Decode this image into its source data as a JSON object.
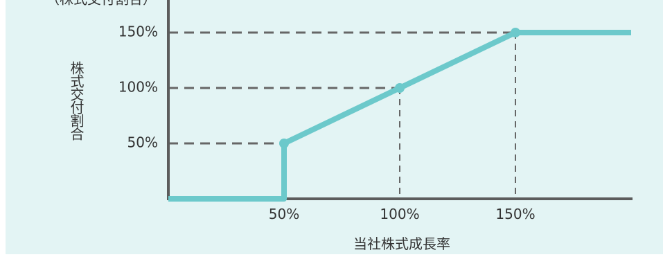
{
  "colors": {
    "background": "#e3f4f4",
    "line": "#6cc9cb",
    "axis": "#5c5c5c",
    "guide": "#666666",
    "text": "#333333"
  },
  "chart_data": {
    "type": "line",
    "top_label_partial": "（株式交付割合）",
    "xlabel": "当社株式成長率",
    "ylabel": "株式交付割合",
    "x_ticks": [
      "50%",
      "100%",
      "150%"
    ],
    "x_tick_values": [
      50,
      100,
      150
    ],
    "y_ticks": [
      "50%",
      "100%",
      "150%"
    ],
    "y_tick_values": [
      50,
      100,
      150
    ],
    "xlim": [
      0,
      200
    ],
    "ylim": [
      0,
      150
    ],
    "series": [
      {
        "points": [
          [
            0,
            0
          ],
          [
            50,
            0
          ],
          [
            50,
            50
          ],
          [
            100,
            100
          ],
          [
            150,
            150
          ],
          [
            200,
            150
          ]
        ]
      }
    ],
    "markers": [
      [
        50,
        50
      ],
      [
        100,
        100
      ],
      [
        150,
        150
      ]
    ],
    "guides": [
      [
        50,
        50
      ],
      [
        100,
        100
      ],
      [
        150,
        150
      ]
    ],
    "grid": false
  }
}
